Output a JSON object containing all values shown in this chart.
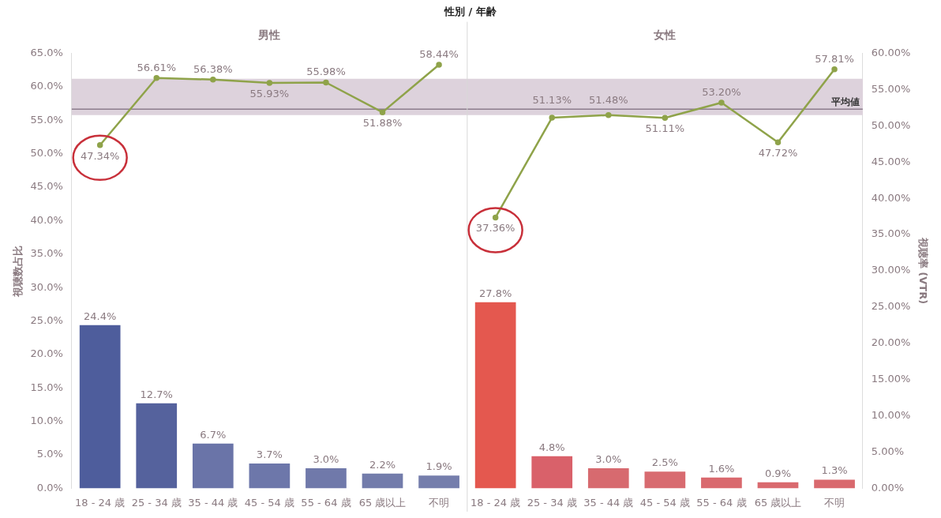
{
  "chart_data": {
    "type": "bar",
    "title": "性別 / 年齢",
    "ylabel": "視聴数占比",
    "y2label": "視聴率 (VTR)",
    "categories": [
      "18 - 24 歳",
      "25 - 34 歳",
      "35 - 44 歳",
      "45 - 54 歳",
      "55 - 64 歳",
      "65 歳以上",
      "不明",
      "18 - 24 歳",
      "25 - 34 歳",
      "35 - 44 歳",
      "45 - 54 歳",
      "55 - 64 歳",
      "65 歳以上",
      "不明"
    ],
    "annotations": [
      "男性",
      "女性"
    ],
    "series": [
      {
        "values": [
          24.4,
          12.7,
          6.7,
          3.7,
          3.0,
          2.2,
          1.9,
          27.8,
          4.8,
          3.0,
          2.5,
          1.6,
          0.9,
          1.3
        ],
        "colors": [
          "#4e5d9c",
          "#55629d",
          "#6a74a8",
          "#6d77aa",
          "#7079aa",
          "#737cab",
          "#757eac",
          "#e4584f",
          "#d9616a",
          "#d76a6f",
          "#d86b70",
          "#d9696e",
          "#d96a6f",
          "#d9696e"
        ],
        "value_labels": [
          "24.4%",
          "12.7%",
          "6.7%",
          "3.7%",
          "3.0%",
          "2.2%",
          "1.9%",
          "27.8%",
          "4.8%",
          "3.0%",
          "2.5%",
          "1.6%",
          "0.9%",
          "1.3%"
        ]
      },
      {
        "type": "line",
        "axis": "y2",
        "color": "#8fa34a",
        "values": [
          47.34,
          56.61,
          56.38,
          55.93,
          55.98,
          51.88,
          58.44,
          null,
          null,
          null,
          null,
          null,
          null,
          null
        ],
        "value_labels": [
          "47.34%",
          "56.61%",
          "56.38%",
          "55.93%",
          "55.98%",
          "51.88%",
          "58.44%",
          null,
          null,
          null,
          null,
          null,
          null,
          null
        ]
      },
      {
        "type": "line",
        "axis": "y2",
        "color": "#8fa34a",
        "values": [
          null,
          null,
          null,
          null,
          null,
          null,
          null,
          37.36,
          51.13,
          51.48,
          51.11,
          53.2,
          47.72,
          57.81
        ],
        "value_labels": [
          null,
          null,
          null,
          null,
          null,
          null,
          null,
          "37.36%",
          "51.13%",
          "51.48%",
          "51.11%",
          "53.20%",
          "47.72%",
          "57.81%"
        ]
      }
    ],
    "marker": "circle",
    "ylim": [
      0,
      65
    ],
    "yticks": [
      {
        "value": 0,
        "label": "0.0%"
      },
      {
        "value": 5,
        "label": "5.0%"
      },
      {
        "value": 10,
        "label": "10.0%"
      },
      {
        "value": 15,
        "label": "15.0%"
      },
      {
        "value": 20,
        "label": "20.0%"
      },
      {
        "value": 25,
        "label": "25.0%"
      },
      {
        "value": 30,
        "label": "30.0%"
      },
      {
        "value": 35,
        "label": "35.0%"
      },
      {
        "value": 40,
        "label": "40.0%"
      },
      {
        "value": 45,
        "label": "45.0%"
      },
      {
        "value": 50,
        "label": "50.0%"
      },
      {
        "value": 55,
        "label": "55.0%"
      },
      {
        "value": 60,
        "label": "60.0%"
      },
      {
        "value": 65,
        "label": "65.0%"
      }
    ],
    "y2lim": [
      0,
      60
    ],
    "y2ticks": [
      {
        "value": 0,
        "label": "0.00%"
      },
      {
        "value": 5,
        "label": "5.00%"
      },
      {
        "value": 10,
        "label": "10.00%"
      },
      {
        "value": 15,
        "label": "15.00%"
      },
      {
        "value": 20,
        "label": "20.00%"
      },
      {
        "value": 25,
        "label": "25.00%"
      },
      {
        "value": 30,
        "label": "30.00%"
      },
      {
        "value": 35,
        "label": "35.00%"
      },
      {
        "value": 40,
        "label": "40.00%"
      },
      {
        "value": 45,
        "label": "45.00%"
      },
      {
        "value": 50,
        "label": "50.00%"
      },
      {
        "value": 55,
        "label": "55.00%"
      },
      {
        "value": 60,
        "label": "60.00%"
      }
    ],
    "bands": [
      {
        "axis": "y2",
        "from": 51.5,
        "to": 56.5,
        "color": "#ddd2dc"
      }
    ],
    "ref_lines": [
      {
        "axis": "y2",
        "value": 52.3,
        "label": "平均値",
        "color": "#8c7c8c"
      }
    ],
    "grid": false,
    "legend": false
  }
}
